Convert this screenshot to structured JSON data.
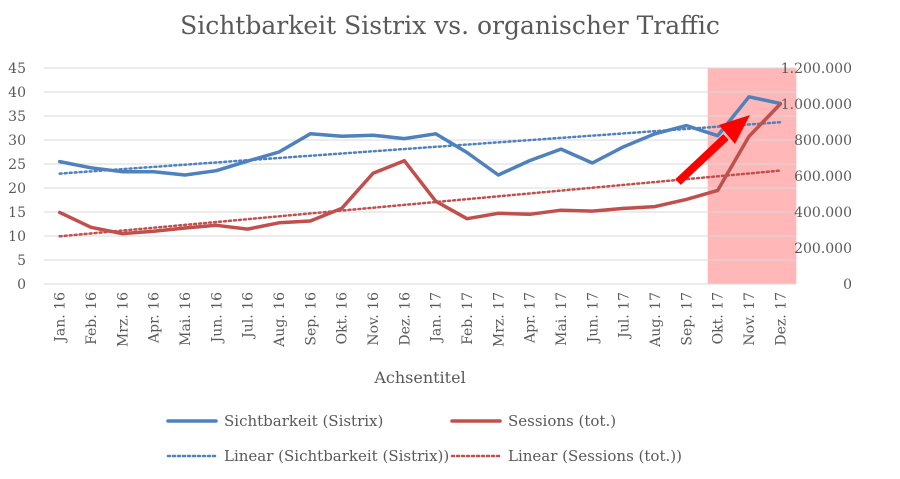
{
  "chart_data": {
    "type": "line",
    "title": "Sichtbarkeit Sistrix vs. organischer Traffic",
    "xlabel": "Achsentitel",
    "categories": [
      "Jan. 16",
      "Feb. 16",
      "Mrz. 16",
      "Apr. 16",
      "Mai. 16",
      "Jun. 16",
      "Jul. 16",
      "Aug. 16",
      "Sep. 16",
      "Okt. 16",
      "Nov. 16",
      "Dez. 16",
      "Jan. 17",
      "Feb. 17",
      "Mrz. 17",
      "Apr. 17",
      "Mai. 17",
      "Jun. 17",
      "Jul. 17",
      "Aug. 17",
      "Sep. 17",
      "Okt. 17",
      "Nov. 17",
      "Dez. 17"
    ],
    "y_left": {
      "range": [
        0,
        45
      ],
      "ticks": [
        "0",
        "5",
        "10",
        "15",
        "20",
        "25",
        "30",
        "35",
        "40",
        "45"
      ]
    },
    "y_right": {
      "range": [
        0,
        1200000
      ],
      "ticks": [
        "0",
        "200.000",
        "400.000",
        "600.000",
        "800.000",
        "1.000.000",
        "1.200.000"
      ]
    },
    "series": [
      {
        "name": "Sichtbarkeit (Sistrix)",
        "axis": "left",
        "color": "#4f81bd",
        "values": [
          25.5,
          24.2,
          23.4,
          23.4,
          22.7,
          23.6,
          25.6,
          27.5,
          31.3,
          30.8,
          31.0,
          30.3,
          31.3,
          27.4,
          22.7,
          25.7,
          28.1,
          25.2,
          28.6,
          31.3,
          33.0,
          30.9,
          39.0,
          37.6
        ]
      },
      {
        "name": "Sessions (tot.)",
        "axis": "right",
        "color": "#c0504d",
        "values": [
          398000,
          315000,
          280000,
          293000,
          311000,
          326000,
          305000,
          340000,
          350000,
          420000,
          615000,
          685000,
          460000,
          363000,
          393000,
          387000,
          410000,
          405000,
          420000,
          430000,
          470000,
          520000,
          820000,
          1000000
        ]
      }
    ],
    "trendlines": [
      {
        "name": "Linear (Sichtbarkeit (Sistrix))",
        "axis": "left",
        "color": "#4f81bd",
        "start": 23.0,
        "end": 33.7
      },
      {
        "name": "Linear (Sessions (tot.))",
        "axis": "right",
        "color": "#c0504d",
        "start": 265000,
        "end": 630000
      }
    ],
    "highlight": {
      "from_category": "Okt. 17",
      "to_category": "Dez. 17",
      "color": "#ffb3b3"
    },
    "annotation": {
      "type": "arrow",
      "color": "#ff0000",
      "description": "upward trend arrow"
    }
  }
}
